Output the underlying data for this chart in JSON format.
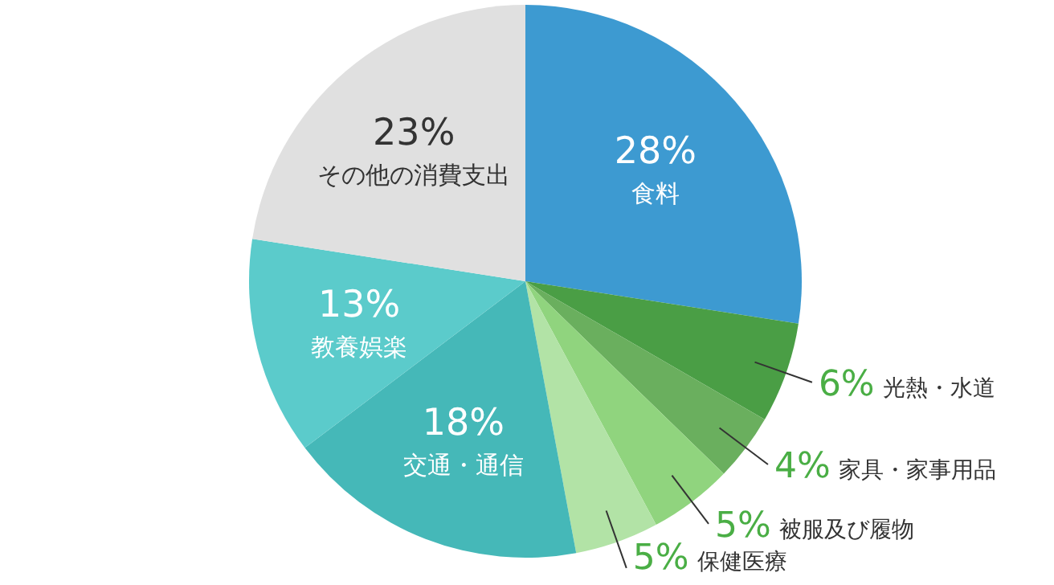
{
  "chart_data": {
    "type": "pie",
    "categories": [
      "食料",
      "光熱・水道",
      "家具・家事用品",
      "被服及び履物",
      "保健医療",
      "交通・通信",
      "教養娯楽",
      "その他の消費支出"
    ],
    "values": [
      28,
      6,
      4,
      5,
      5,
      18,
      13,
      23
    ],
    "value_labels": [
      "28%",
      "6%",
      "4%",
      "5%",
      "5%",
      "18%",
      "13%",
      "23%"
    ],
    "colors": [
      "#3d9ad1",
      "#4a9e45",
      "#6aaf5e",
      "#90d47e",
      "#b2e3a6",
      "#45b8b8",
      "#5bcbcb",
      "#e0e0e0"
    ]
  }
}
